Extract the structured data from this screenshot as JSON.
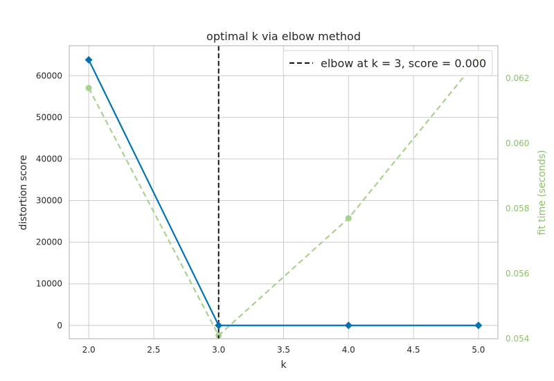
{
  "chart_data": {
    "type": "line",
    "title": "optimal k via elbow method",
    "xlabel": "k",
    "ylabel": "distortion score",
    "y2label": "fit time (seconds)",
    "xlim": [
      1.85,
      5.15
    ],
    "ylim": [
      -3200,
      67200
    ],
    "y2lim": [
      0.054,
      0.063
    ],
    "x_ticks": [
      "2.0",
      "2.5",
      "3.0",
      "3.5",
      "4.0",
      "4.5",
      "5.0"
    ],
    "y_ticks": [
      "0",
      "10000",
      "20000",
      "30000",
      "40000",
      "50000",
      "60000"
    ],
    "y2_ticks": [
      "0.054",
      "0.056",
      "0.058",
      "0.060",
      "0.062"
    ],
    "grid": true,
    "legend_position": "top-right",
    "series": [
      {
        "name": "distortion score",
        "axis": "left",
        "x": [
          2,
          3,
          4,
          5
        ],
        "values": [
          63800,
          0,
          0,
          0
        ],
        "color": "#0072b2",
        "marker": "diamond",
        "linestyle": "solid"
      },
      {
        "name": "fit time (seconds)",
        "axis": "right",
        "x": [
          2,
          3,
          4,
          5
        ],
        "values": [
          0.0617,
          0.0541,
          0.0577,
          0.0626
        ],
        "color": "#a9d18e",
        "marker": "circle",
        "linestyle": "dashed"
      }
    ],
    "elbow": {
      "x": 3,
      "legend_label": "elbow at k = 3, score = 0.000",
      "color": "#111111",
      "linestyle": "dashed"
    },
    "colors": {
      "grid": "#cccccc",
      "frame": "#bcbcbc",
      "y2_text": "#8cc069"
    }
  }
}
